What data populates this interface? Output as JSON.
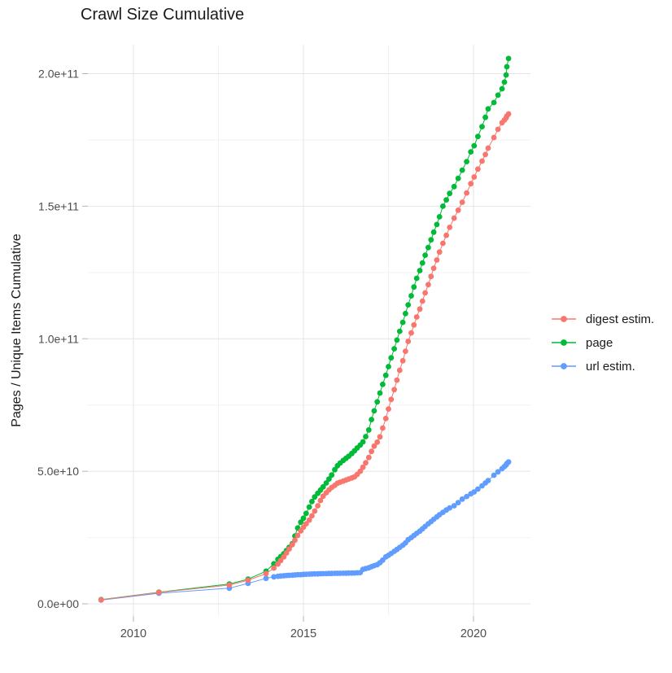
{
  "title": "Crawl Size Cumulative",
  "chart_data": {
    "type": "line",
    "title": "Crawl Size Cumulative",
    "xlabel": "",
    "ylabel": "Pages / Unique Items Cumulative",
    "background": "#ffffff",
    "grid": true,
    "legend_position": "right",
    "x_tick_years": [
      2010,
      2015,
      2020
    ],
    "x_tick_labels": [
      "2010",
      "2015",
      "2020"
    ],
    "x_minor_years": [
      2012.5,
      2017.5
    ],
    "y_ticks_e9": [
      0,
      50,
      100,
      150,
      200
    ],
    "y_tick_labels": [
      "0.0e+00",
      "5.0e+10",
      "1.0e+11",
      "1.5e+11",
      "2.0e+11"
    ],
    "y_minor_e9": [
      25,
      75,
      125,
      175
    ],
    "xlim_years": [
      2008.66,
      2021.67
    ],
    "ylim": [
      -4600000000.0,
      211000000000.0
    ],
    "value_unit": "billions of pages / unique items (value x 1e9)",
    "series": [
      {
        "name": "digest estim.",
        "color": "#F8766D",
        "points": [
          [
            2009.05,
            1.5
          ],
          [
            2010.75,
            4.3
          ],
          [
            2012.82,
            7.1
          ],
          [
            2013.37,
            8.9
          ],
          [
            2013.9,
            11.4
          ],
          [
            2014.13,
            13.5
          ],
          [
            2014.25,
            15.0
          ],
          [
            2014.33,
            16.3
          ],
          [
            2014.42,
            17.7
          ],
          [
            2014.5,
            19.2
          ],
          [
            2014.58,
            20.7
          ],
          [
            2014.67,
            22.3
          ],
          [
            2014.75,
            24.0
          ],
          [
            2014.83,
            25.8
          ],
          [
            2014.92,
            27.5
          ],
          [
            2015.0,
            28.9
          ],
          [
            2015.08,
            30.2
          ],
          [
            2015.17,
            31.6
          ],
          [
            2015.25,
            33.2
          ],
          [
            2015.33,
            35.0
          ],
          [
            2015.42,
            37.0
          ],
          [
            2015.5,
            39.0
          ],
          [
            2015.58,
            40.6
          ],
          [
            2015.67,
            41.9
          ],
          [
            2015.75,
            43.0
          ],
          [
            2015.83,
            43.9
          ],
          [
            2015.92,
            44.7
          ],
          [
            2016.0,
            45.5
          ],
          [
            2016.08,
            45.9
          ],
          [
            2016.17,
            46.3
          ],
          [
            2016.25,
            46.7
          ],
          [
            2016.33,
            47.1
          ],
          [
            2016.42,
            47.5
          ],
          [
            2016.5,
            47.9
          ],
          [
            2016.58,
            48.8
          ],
          [
            2016.67,
            50.0
          ],
          [
            2016.75,
            51.5
          ],
          [
            2016.83,
            53.2
          ],
          [
            2016.92,
            55.2
          ],
          [
            2017.0,
            57.5
          ],
          [
            2017.08,
            59.5
          ],
          [
            2017.17,
            61.0
          ],
          [
            2017.25,
            63.0
          ],
          [
            2017.33,
            66.3
          ],
          [
            2017.42,
            69.9
          ],
          [
            2017.5,
            73.5
          ],
          [
            2017.58,
            77.1
          ],
          [
            2017.67,
            80.8
          ],
          [
            2017.75,
            84.4
          ],
          [
            2017.83,
            88.1
          ],
          [
            2017.92,
            91.7
          ],
          [
            2018.0,
            95.3
          ],
          [
            2018.08,
            99.0
          ],
          [
            2018.17,
            102.2
          ],
          [
            2018.25,
            105.2
          ],
          [
            2018.33,
            108.2
          ],
          [
            2018.42,
            111.2
          ],
          [
            2018.5,
            114.2
          ],
          [
            2018.58,
            117.3
          ],
          [
            2018.67,
            120.4
          ],
          [
            2018.75,
            123.5
          ],
          [
            2018.83,
            126.6
          ],
          [
            2018.92,
            129.7
          ],
          [
            2019.0,
            132.7
          ],
          [
            2019.1,
            136.0
          ],
          [
            2019.2,
            139.0
          ],
          [
            2019.3,
            142.0
          ],
          [
            2019.43,
            145.5
          ],
          [
            2019.55,
            148.5
          ],
          [
            2019.67,
            151.5
          ],
          [
            2019.8,
            155.0
          ],
          [
            2019.92,
            158.5
          ],
          [
            2020.02,
            161.0
          ],
          [
            2020.13,
            164.0
          ],
          [
            2020.25,
            167.0
          ],
          [
            2020.35,
            169.5
          ],
          [
            2020.43,
            171.9
          ],
          [
            2020.6,
            175.9
          ],
          [
            2020.72,
            179.0
          ],
          [
            2020.84,
            181.5
          ],
          [
            2020.91,
            182.5
          ],
          [
            2020.96,
            183.3
          ],
          [
            2020.98,
            184.0
          ],
          [
            2021.03,
            184.8
          ]
        ]
      },
      {
        "name": "page",
        "color": "#00BA38",
        "points": [
          [
            2009.05,
            1.6
          ],
          [
            2010.75,
            4.4
          ],
          [
            2012.82,
            7.5
          ],
          [
            2013.37,
            9.3
          ],
          [
            2013.9,
            12.3
          ],
          [
            2014.13,
            15.1
          ],
          [
            2014.25,
            16.8
          ],
          [
            2014.33,
            17.8
          ],
          [
            2014.42,
            18.9
          ],
          [
            2014.5,
            20.1
          ],
          [
            2014.58,
            21.3
          ],
          [
            2014.67,
            22.7
          ],
          [
            2014.75,
            25.6
          ],
          [
            2014.83,
            28.6
          ],
          [
            2014.92,
            30.8
          ],
          [
            2015.0,
            32.3
          ],
          [
            2015.08,
            34.1
          ],
          [
            2015.17,
            36.5
          ],
          [
            2015.25,
            38.6
          ],
          [
            2015.33,
            40.3
          ],
          [
            2015.42,
            41.7
          ],
          [
            2015.5,
            42.9
          ],
          [
            2015.58,
            44.1
          ],
          [
            2015.67,
            45.6
          ],
          [
            2015.75,
            47.1
          ],
          [
            2015.83,
            48.6
          ],
          [
            2015.92,
            50.6
          ],
          [
            2016.0,
            52.1
          ],
          [
            2016.08,
            53.1
          ],
          [
            2016.17,
            54.1
          ],
          [
            2016.25,
            54.9
          ],
          [
            2016.33,
            55.7
          ],
          [
            2016.42,
            56.7
          ],
          [
            2016.5,
            57.7
          ],
          [
            2016.58,
            58.8
          ],
          [
            2016.67,
            59.9
          ],
          [
            2016.75,
            61.1
          ],
          [
            2016.83,
            63.1
          ],
          [
            2016.92,
            65.6
          ],
          [
            2017.0,
            69.5
          ],
          [
            2017.08,
            72.8
          ],
          [
            2017.17,
            76.2
          ],
          [
            2017.25,
            79.5
          ],
          [
            2017.33,
            82.8
          ],
          [
            2017.42,
            86.2
          ],
          [
            2017.5,
            89.5
          ],
          [
            2017.58,
            92.8
          ],
          [
            2017.67,
            96.2
          ],
          [
            2017.75,
            99.5
          ],
          [
            2017.83,
            102.8
          ],
          [
            2017.92,
            106.2
          ],
          [
            2018.0,
            109.5
          ],
          [
            2018.08,
            112.8
          ],
          [
            2018.17,
            116.2
          ],
          [
            2018.25,
            119.5
          ],
          [
            2018.33,
            122.8
          ],
          [
            2018.42,
            125.7
          ],
          [
            2018.5,
            128.6
          ],
          [
            2018.58,
            131.5
          ],
          [
            2018.67,
            134.4
          ],
          [
            2018.75,
            137.3
          ],
          [
            2018.83,
            140.2
          ],
          [
            2018.92,
            143.1
          ],
          [
            2019.0,
            146.0
          ],
          [
            2019.1,
            150.0
          ],
          [
            2019.2,
            152.4
          ],
          [
            2019.3,
            154.8
          ],
          [
            2019.43,
            157.4
          ],
          [
            2019.55,
            160.5
          ],
          [
            2019.67,
            163.6
          ],
          [
            2019.8,
            166.8
          ],
          [
            2019.92,
            170.5
          ],
          [
            2020.02,
            172.8
          ],
          [
            2020.13,
            176.3
          ],
          [
            2020.25,
            180.0
          ],
          [
            2020.35,
            183.5
          ],
          [
            2020.43,
            186.7
          ],
          [
            2020.6,
            189.1
          ],
          [
            2020.72,
            191.9
          ],
          [
            2020.84,
            194.3
          ],
          [
            2020.91,
            196.8
          ],
          [
            2020.96,
            199.5
          ],
          [
            2020.98,
            202.6
          ],
          [
            2021.03,
            205.7
          ]
        ]
      },
      {
        "name": "url estim.",
        "color": "#619CFF",
        "points": [
          [
            2009.05,
            1.4
          ],
          [
            2010.75,
            4.0
          ],
          [
            2012.82,
            5.9
          ],
          [
            2013.37,
            7.7
          ],
          [
            2013.9,
            9.6
          ],
          [
            2014.13,
            10.2
          ],
          [
            2014.25,
            10.4
          ],
          [
            2014.33,
            10.5
          ],
          [
            2014.42,
            10.6
          ],
          [
            2014.5,
            10.7
          ],
          [
            2014.58,
            10.75
          ],
          [
            2014.67,
            10.8
          ],
          [
            2014.75,
            10.9
          ],
          [
            2014.83,
            11.0
          ],
          [
            2014.92,
            11.0
          ],
          [
            2015.0,
            11.1
          ],
          [
            2015.08,
            11.15
          ],
          [
            2015.17,
            11.2
          ],
          [
            2015.25,
            11.25
          ],
          [
            2015.33,
            11.3
          ],
          [
            2015.42,
            11.3
          ],
          [
            2015.5,
            11.35
          ],
          [
            2015.58,
            11.4
          ],
          [
            2015.67,
            11.4
          ],
          [
            2015.75,
            11.45
          ],
          [
            2015.83,
            11.45
          ],
          [
            2015.92,
            11.5
          ],
          [
            2016.0,
            11.5
          ],
          [
            2016.08,
            11.5
          ],
          [
            2016.17,
            11.55
          ],
          [
            2016.25,
            11.55
          ],
          [
            2016.33,
            11.6
          ],
          [
            2016.42,
            11.6
          ],
          [
            2016.5,
            11.65
          ],
          [
            2016.58,
            11.7
          ],
          [
            2016.67,
            11.8
          ],
          [
            2016.75,
            13.0
          ],
          [
            2016.83,
            13.3
          ],
          [
            2016.92,
            13.6
          ],
          [
            2017.0,
            14.0
          ],
          [
            2017.08,
            14.4
          ],
          [
            2017.17,
            14.8
          ],
          [
            2017.25,
            15.5
          ],
          [
            2017.33,
            16.5
          ],
          [
            2017.42,
            17.7
          ],
          [
            2017.5,
            18.3
          ],
          [
            2017.58,
            19.0
          ],
          [
            2017.67,
            19.8
          ],
          [
            2017.75,
            20.5
          ],
          [
            2017.83,
            21.3
          ],
          [
            2017.92,
            22.1
          ],
          [
            2018.0,
            23.0
          ],
          [
            2018.08,
            24.2
          ],
          [
            2018.17,
            25.0
          ],
          [
            2018.25,
            25.8
          ],
          [
            2018.33,
            26.6
          ],
          [
            2018.42,
            27.4
          ],
          [
            2018.5,
            28.3
          ],
          [
            2018.58,
            29.2
          ],
          [
            2018.67,
            30.2
          ],
          [
            2018.75,
            31.0
          ],
          [
            2018.83,
            31.9
          ],
          [
            2018.92,
            32.8
          ],
          [
            2019.0,
            33.6
          ],
          [
            2019.1,
            34.5
          ],
          [
            2019.2,
            35.4
          ],
          [
            2019.3,
            36.2
          ],
          [
            2019.43,
            37.0
          ],
          [
            2019.55,
            38.2
          ],
          [
            2019.67,
            39.5
          ],
          [
            2019.8,
            40.5
          ],
          [
            2019.92,
            41.5
          ],
          [
            2020.02,
            42.2
          ],
          [
            2020.13,
            43.3
          ],
          [
            2020.25,
            44.5
          ],
          [
            2020.35,
            45.6
          ],
          [
            2020.43,
            46.5
          ],
          [
            2020.6,
            48.5
          ],
          [
            2020.72,
            49.8
          ],
          [
            2020.84,
            51.0
          ],
          [
            2020.91,
            51.8
          ],
          [
            2020.96,
            52.4
          ],
          [
            2020.98,
            52.9
          ],
          [
            2021.03,
            53.5
          ]
        ]
      }
    ],
    "colors": {
      "major_grid": "#e4e4e4",
      "minor_grid": "#f2f2f2",
      "tick": "#b4b4b4",
      "tick_text": "#4d4d4d",
      "title_text": "#1a1a1a"
    }
  }
}
